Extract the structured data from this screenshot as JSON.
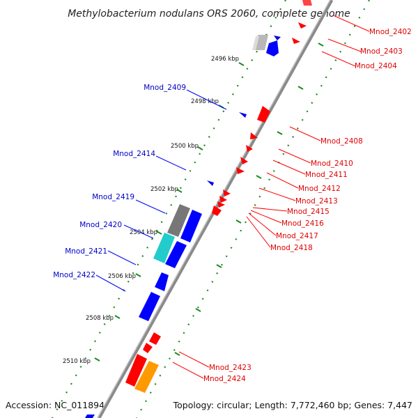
{
  "title": "Methylobacterium nodulans ORS 2060, complete genome",
  "accession": "Accession: NC_011894",
  "summary": "Topology: circular; Length: 7,772,460 bp; Genes: 7,447",
  "colors": {
    "forward_label": "#e00000",
    "reverse_label": "#0000c8",
    "forward_gene": "#ff0000",
    "reverse_gene": "#0000ff",
    "tick": "#1a8a1a",
    "backbone": "#8a8a8a"
  },
  "ticks": [
    {
      "label": "2496 kbp"
    },
    {
      "label": "2498 kbp"
    },
    {
      "label": "2500 kbp"
    },
    {
      "label": "2502 kbp"
    },
    {
      "label": "2504 kbp"
    },
    {
      "label": "2506 kbp"
    },
    {
      "label": "2508 kbp"
    },
    {
      "label": "2510 kbp"
    }
  ],
  "forward_labels": [
    {
      "text": "Mnod_2402"
    },
    {
      "text": "Mnod_2403"
    },
    {
      "text": "Mnod_2404"
    },
    {
      "text": "Mnod_2408"
    },
    {
      "text": "Mnod_2410"
    },
    {
      "text": "Mnod_2411"
    },
    {
      "text": "Mnod_2412"
    },
    {
      "text": "Mnod_2413"
    },
    {
      "text": "Mnod_2415"
    },
    {
      "text": "Mnod_2416"
    },
    {
      "text": "Mnod_2417"
    },
    {
      "text": "Mnod_2418"
    },
    {
      "text": "Mnod_2423"
    },
    {
      "text": "Mnod_2424"
    }
  ],
  "reverse_labels": [
    {
      "text": "Mnod_2409"
    },
    {
      "text": "Mnod_2414"
    },
    {
      "text": "Mnod_2419"
    },
    {
      "text": "Mnod_2420"
    },
    {
      "text": "Mnod_2421"
    },
    {
      "text": "Mnod_2422"
    }
  ]
}
